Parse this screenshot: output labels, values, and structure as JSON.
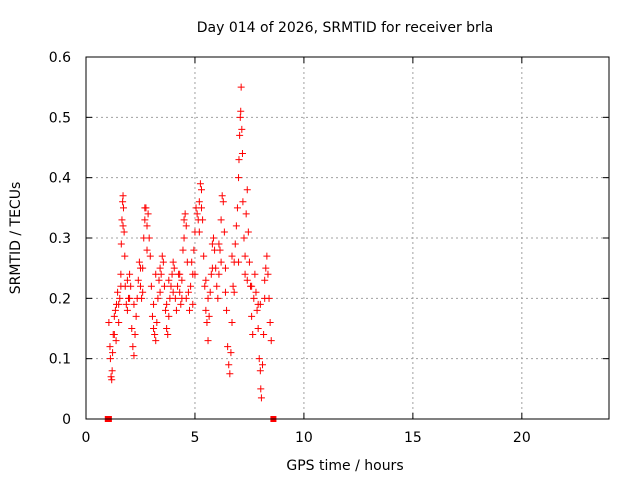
{
  "chart_data": {
    "type": "scatter",
    "title": "Day 014 of 2026, SRMTID for receiver brla",
    "xlabel": "GPS time / hours",
    "ylabel": "SRMTID / TECUs",
    "xlim": [
      0,
      24
    ],
    "ylim": [
      0,
      0.6
    ],
    "x_ticks": [
      0,
      5,
      10,
      15,
      20
    ],
    "x_tick_labels": [
      "0",
      "5",
      "10",
      "15",
      "20"
    ],
    "y_ticks": [
      0,
      0.1,
      0.2,
      0.3,
      0.4,
      0.5,
      0.6
    ],
    "y_tick_labels": [
      "0",
      "0.1",
      "0.2",
      "0.3",
      "0.4",
      "0.5",
      "0.6"
    ],
    "grid": true,
    "marker": "plus",
    "color": "#ff0000",
    "zero_markers_x": [
      1.0,
      1.05,
      8.6
    ],
    "points": [
      [
        1.05,
        0.16
      ],
      [
        1.1,
        0.12
      ],
      [
        1.12,
        0.1
      ],
      [
        1.15,
        0.07
      ],
      [
        1.18,
        0.065
      ],
      [
        1.2,
        0.08
      ],
      [
        1.22,
        0.11
      ],
      [
        1.25,
        0.14
      ],
      [
        1.3,
        0.17
      ],
      [
        1.35,
        0.18
      ],
      [
        1.38,
        0.13
      ],
      [
        1.4,
        0.19
      ],
      [
        1.45,
        0.21
      ],
      [
        1.5,
        0.16
      ],
      [
        1.55,
        0.2
      ],
      [
        1.6,
        0.24
      ],
      [
        1.62,
        0.29
      ],
      [
        1.65,
        0.33
      ],
      [
        1.68,
        0.36
      ],
      [
        1.7,
        0.37
      ],
      [
        1.72,
        0.35
      ],
      [
        1.75,
        0.31
      ],
      [
        1.78,
        0.27
      ],
      [
        1.8,
        0.22
      ],
      [
        1.85,
        0.19
      ],
      [
        1.9,
        0.18
      ],
      [
        1.95,
        0.2
      ],
      [
        2.0,
        0.24
      ],
      [
        2.05,
        0.22
      ],
      [
        2.1,
        0.15
      ],
      [
        2.15,
        0.12
      ],
      [
        2.2,
        0.105
      ],
      [
        2.25,
        0.14
      ],
      [
        2.3,
        0.17
      ],
      [
        2.35,
        0.2
      ],
      [
        2.4,
        0.23
      ],
      [
        2.45,
        0.26
      ],
      [
        2.5,
        0.22
      ],
      [
        2.55,
        0.2
      ],
      [
        2.6,
        0.25
      ],
      [
        2.65,
        0.3
      ],
      [
        2.7,
        0.33
      ],
      [
        2.75,
        0.35
      ],
      [
        2.8,
        0.32
      ],
      [
        2.85,
        0.34
      ],
      [
        2.9,
        0.3
      ],
      [
        2.95,
        0.27
      ],
      [
        3.0,
        0.22
      ],
      [
        3.05,
        0.17
      ],
      [
        3.1,
        0.15
      ],
      [
        3.15,
        0.14
      ],
      [
        3.2,
        0.13
      ],
      [
        3.25,
        0.16
      ],
      [
        3.3,
        0.2
      ],
      [
        3.35,
        0.23
      ],
      [
        3.4,
        0.25
      ],
      [
        3.45,
        0.24
      ],
      [
        3.5,
        0.27
      ],
      [
        3.55,
        0.26
      ],
      [
        3.6,
        0.22
      ],
      [
        3.65,
        0.18
      ],
      [
        3.7,
        0.15
      ],
      [
        3.75,
        0.14
      ],
      [
        3.8,
        0.17
      ],
      [
        3.85,
        0.2
      ],
      [
        3.9,
        0.22
      ],
      [
        3.95,
        0.24
      ],
      [
        4.0,
        0.26
      ],
      [
        4.05,
        0.25
      ],
      [
        4.1,
        0.2
      ],
      [
        4.15,
        0.18
      ],
      [
        4.2,
        0.22
      ],
      [
        4.25,
        0.24
      ],
      [
        4.3,
        0.21
      ],
      [
        4.35,
        0.19
      ],
      [
        4.4,
        0.23
      ],
      [
        4.45,
        0.28
      ],
      [
        4.5,
        0.3
      ],
      [
        4.55,
        0.34
      ],
      [
        4.6,
        0.32
      ],
      [
        4.65,
        0.26
      ],
      [
        4.7,
        0.21
      ],
      [
        4.75,
        0.18
      ],
      [
        4.8,
        0.22
      ],
      [
        4.85,
        0.26
      ],
      [
        4.9,
        0.24
      ],
      [
        4.95,
        0.28
      ],
      [
        5.0,
        0.31
      ],
      [
        5.05,
        0.35
      ],
      [
        5.1,
        0.34
      ],
      [
        5.15,
        0.33
      ],
      [
        5.2,
        0.36
      ],
      [
        5.25,
        0.39
      ],
      [
        5.3,
        0.38
      ],
      [
        5.35,
        0.33
      ],
      [
        5.4,
        0.27
      ],
      [
        5.45,
        0.22
      ],
      [
        5.5,
        0.18
      ],
      [
        5.55,
        0.16
      ],
      [
        5.6,
        0.13
      ],
      [
        5.65,
        0.17
      ],
      [
        5.7,
        0.21
      ],
      [
        5.75,
        0.24
      ],
      [
        5.8,
        0.29
      ],
      [
        5.85,
        0.3
      ],
      [
        5.9,
        0.28
      ],
      [
        5.95,
        0.25
      ],
      [
        6.0,
        0.22
      ],
      [
        6.05,
        0.2
      ],
      [
        6.1,
        0.24
      ],
      [
        6.15,
        0.28
      ],
      [
        6.2,
        0.33
      ],
      [
        6.25,
        0.37
      ],
      [
        6.3,
        0.36
      ],
      [
        6.35,
        0.31
      ],
      [
        6.4,
        0.25
      ],
      [
        6.45,
        0.18
      ],
      [
        6.5,
        0.12
      ],
      [
        6.55,
        0.09
      ],
      [
        6.6,
        0.075
      ],
      [
        6.65,
        0.11
      ],
      [
        6.7,
        0.16
      ],
      [
        6.75,
        0.22
      ],
      [
        6.8,
        0.26
      ],
      [
        6.85,
        0.29
      ],
      [
        6.9,
        0.32
      ],
      [
        6.95,
        0.35
      ],
      [
        7.0,
        0.4
      ],
      [
        7.02,
        0.43
      ],
      [
        7.05,
        0.47
      ],
      [
        7.08,
        0.5
      ],
      [
        7.1,
        0.51
      ],
      [
        7.12,
        0.55
      ],
      [
        7.15,
        0.48
      ],
      [
        7.18,
        0.44
      ],
      [
        7.2,
        0.36
      ],
      [
        7.25,
        0.3
      ],
      [
        7.3,
        0.27
      ],
      [
        7.35,
        0.34
      ],
      [
        7.4,
        0.38
      ],
      [
        7.45,
        0.31
      ],
      [
        7.5,
        0.26
      ],
      [
        7.55,
        0.22
      ],
      [
        7.6,
        0.17
      ],
      [
        7.65,
        0.14
      ],
      [
        7.7,
        0.2
      ],
      [
        7.75,
        0.24
      ],
      [
        7.8,
        0.21
      ],
      [
        7.85,
        0.18
      ],
      [
        7.9,
        0.15
      ],
      [
        7.95,
        0.1
      ],
      [
        8.0,
        0.08
      ],
      [
        8.02,
        0.05
      ],
      [
        8.05,
        0.035
      ],
      [
        8.1,
        0.09
      ],
      [
        8.15,
        0.14
      ],
      [
        8.2,
        0.2
      ],
      [
        8.25,
        0.25
      ],
      [
        8.3,
        0.27
      ],
      [
        8.35,
        0.24
      ],
      [
        8.4,
        0.2
      ],
      [
        8.45,
        0.16
      ],
      [
        8.5,
        0.13
      ],
      [
        1.3,
        0.14
      ],
      [
        1.6,
        0.22
      ],
      [
        1.9,
        0.23
      ],
      [
        2.2,
        0.19
      ],
      [
        2.5,
        0.25
      ],
      [
        2.8,
        0.28
      ],
      [
        3.1,
        0.19
      ],
      [
        3.4,
        0.21
      ],
      [
        3.7,
        0.19
      ],
      [
        4.0,
        0.21
      ],
      [
        4.3,
        0.24
      ],
      [
        4.6,
        0.2
      ],
      [
        4.9,
        0.19
      ],
      [
        5.2,
        0.31
      ],
      [
        5.5,
        0.23
      ],
      [
        5.8,
        0.25
      ],
      [
        6.1,
        0.29
      ],
      [
        6.4,
        0.21
      ],
      [
        6.7,
        0.27
      ],
      [
        7.0,
        0.26
      ],
      [
        7.3,
        0.24
      ],
      [
        7.6,
        0.22
      ],
      [
        7.9,
        0.19
      ],
      [
        8.2,
        0.23
      ],
      [
        1.5,
        0.19
      ],
      [
        2.0,
        0.2
      ],
      [
        2.6,
        0.21
      ],
      [
        3.2,
        0.24
      ],
      [
        3.8,
        0.23
      ],
      [
        4.4,
        0.2
      ],
      [
        5.0,
        0.24
      ],
      [
        5.6,
        0.2
      ],
      [
        6.2,
        0.26
      ],
      [
        6.8,
        0.21
      ],
      [
        7.4,
        0.23
      ],
      [
        8.0,
        0.19
      ],
      [
        1.7,
        0.32
      ],
      [
        2.7,
        0.35
      ],
      [
        4.5,
        0.33
      ],
      [
        5.3,
        0.35
      ]
    ]
  }
}
